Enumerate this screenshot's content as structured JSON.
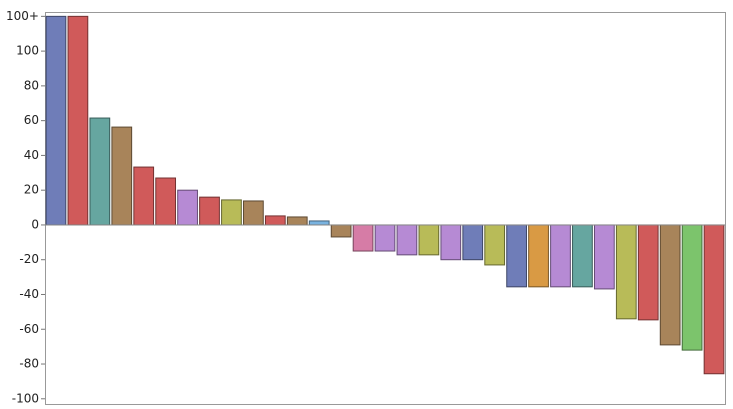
{
  "chart_data": {
    "type": "bar",
    "values": [
      120,
      120,
      61.5,
      56.3,
      33.3,
      27,
      20,
      16,
      14.4,
      13.8,
      5.2,
      4.6,
      2.3,
      -6.9,
      -15,
      -15,
      -17.2,
      -17.2,
      -20,
      -20,
      -23,
      -35.6,
      -35.6,
      -35.6,
      -35.6,
      -36.8,
      -54,
      -54.6,
      -69,
      -72,
      -85.6
    ],
    "colors": [
      "#6f7db8",
      "#d05a5a",
      "#66a6a0",
      "#a8845a",
      "#d05a5a",
      "#d05a5a",
      "#b68ad4",
      "#d05a5a",
      "#b8bb58",
      "#a8845a",
      "#d05a5a",
      "#a8845a",
      "#79b3e0",
      "#a8845a",
      "#d67ca6",
      "#b68ad4",
      "#b68ad4",
      "#b8bb58",
      "#b68ad4",
      "#6f7db8",
      "#b8bb58",
      "#6f7db8",
      "#d99a44",
      "#b68ad4",
      "#66a6a0",
      "#b68ad4",
      "#b8bb58",
      "#d05a5a",
      "#a8845a",
      "#7cc46c",
      "#d05a5a"
    ],
    "ylim": [
      -103,
      122.5
    ],
    "yticks": [
      -100,
      -80,
      -60,
      -40,
      -20,
      0,
      20,
      40,
      60,
      80,
      100,
      {
        "value": 120,
        "label": "100+"
      }
    ]
  }
}
